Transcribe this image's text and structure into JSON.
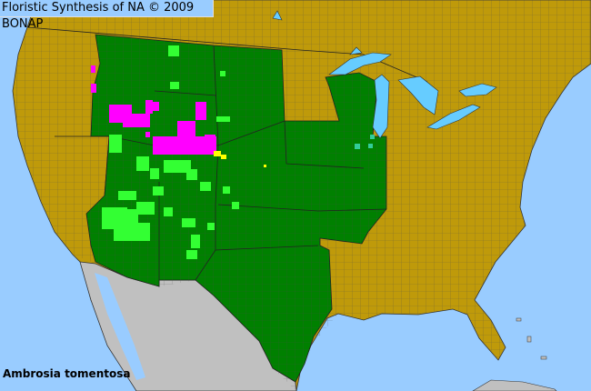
{
  "header": {
    "title": "Floristic Synthesis of NA © 2009 BONAP"
  },
  "map": {
    "species": "Ambrosia tomentosa",
    "colors": {
      "ocean": "#99ccff",
      "lakes": "#66ccff",
      "outside_region": "#bf9a0a",
      "mexico": "#c0c0c0",
      "state_present": "#008000",
      "county_present_native": "#33ff33",
      "county_noxious_or_rare": "#ff00ff",
      "county_adventive": "#ffff00",
      "county_other": "#33cc99",
      "borders": "#555555"
    }
  }
}
